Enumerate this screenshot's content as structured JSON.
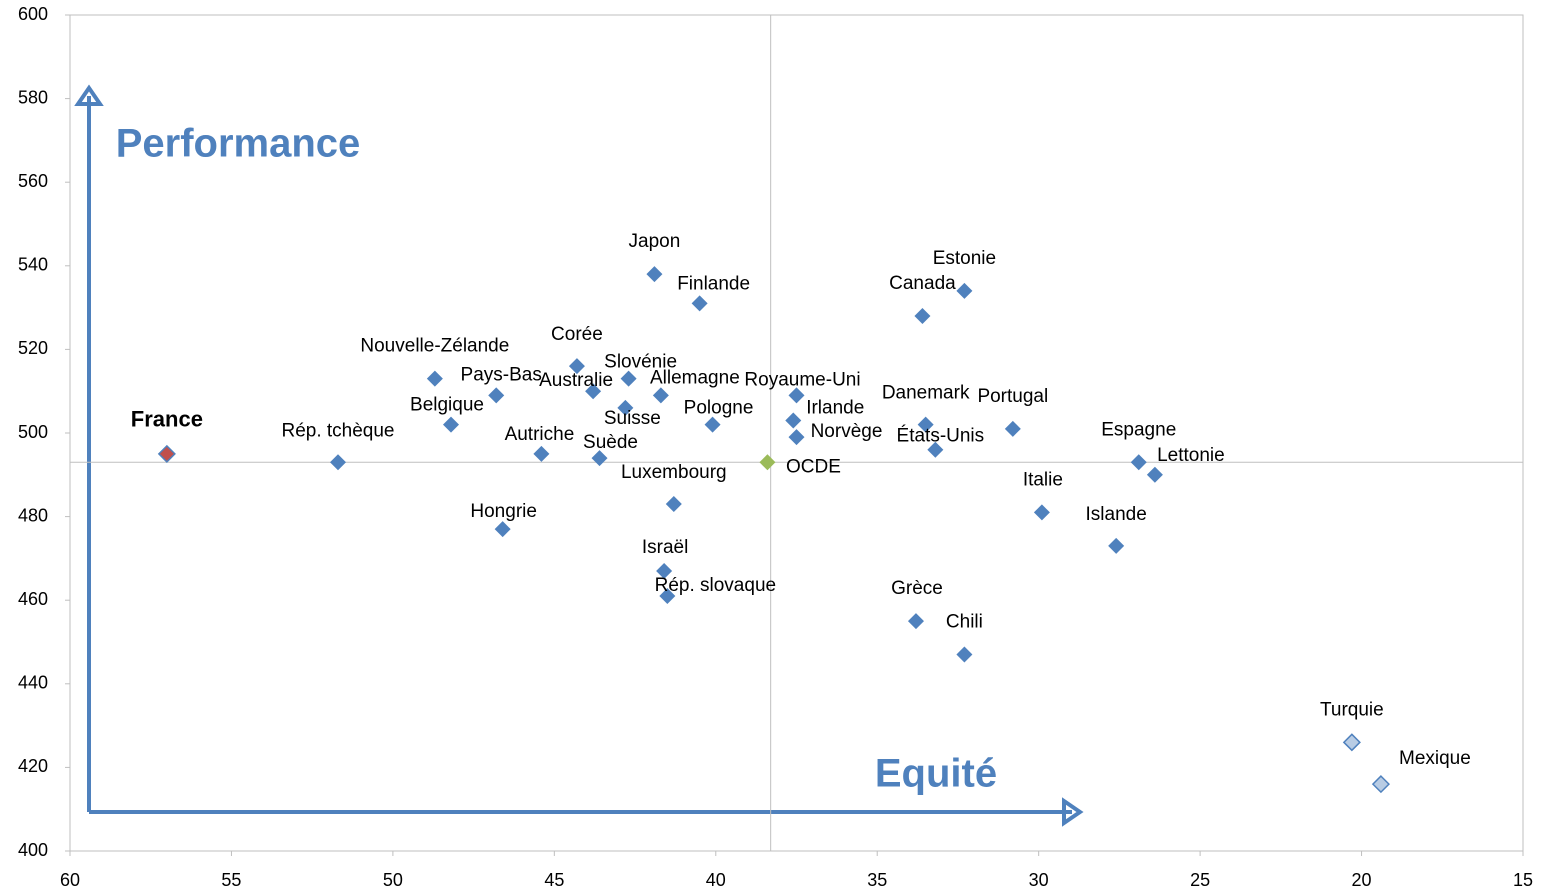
{
  "chart_data": {
    "type": "scatter",
    "annotations": [
      "Performance",
      "Equité"
    ],
    "labels": [
      "France",
      "Rép. tchèque",
      "Nouvelle-Zélande",
      "Pays-Bas",
      "Belgique",
      "Hongrie",
      "Autriche",
      "Corée",
      "Australie",
      "Slovénie",
      "Suisse",
      "Suède",
      "Japon",
      "Finlande",
      "Allemagne",
      "Pologne",
      "Luxembourg",
      "Israël",
      "Rép. slovaque",
      "OCDE",
      "Royaume-Uni",
      "Irlande",
      "Norvège",
      "Canada",
      "Estonie",
      "Danemark",
      "États-Unis",
      "Portugal",
      "Grèce",
      "Chili",
      "Italie",
      "Islande",
      "Espagne",
      "Lettonie",
      "Turquie",
      "Mexique"
    ],
    "x": [
      57.0,
      51.7,
      48.7,
      46.8,
      48.2,
      46.6,
      45.4,
      44.3,
      43.8,
      42.7,
      42.8,
      43.6,
      41.9,
      40.5,
      41.7,
      40.1,
      41.3,
      41.6,
      41.5,
      38.4,
      37.5,
      37.6,
      37.5,
      33.6,
      32.3,
      33.5,
      33.2,
      30.8,
      33.8,
      32.3,
      29.9,
      27.6,
      26.9,
      26.4,
      20.3,
      19.4
    ],
    "values": [
      495,
      493,
      513,
      509,
      502,
      477,
      495,
      516,
      510,
      513,
      506,
      494,
      538,
      531,
      509,
      502,
      483,
      467,
      461,
      493,
      509,
      503,
      499,
      528,
      534,
      502,
      496,
      501,
      455,
      447,
      481,
      473,
      493,
      490,
      426,
      416
    ],
    "colors": [
      "#c0504d",
      "#4f81bd",
      "#4f81bd",
      "#4f81bd",
      "#4f81bd",
      "#4f81bd",
      "#4f81bd",
      "#4f81bd",
      "#4f81bd",
      "#4f81bd",
      "#4f81bd",
      "#4f81bd",
      "#4f81bd",
      "#4f81bd",
      "#4f81bd",
      "#4f81bd",
      "#4f81bd",
      "#4f81bd",
      "#4f81bd",
      "#9bbb59",
      "#4f81bd",
      "#4f81bd",
      "#4f81bd",
      "#4f81bd",
      "#4f81bd",
      "#4f81bd",
      "#4f81bd",
      "#4f81bd",
      "#4f81bd",
      "#4f81bd",
      "#4f81bd",
      "#4f81bd",
      "#4f81bd",
      "#4f81bd",
      "#b8cce4",
      "#b8cce4"
    ],
    "reference_lines": {
      "x": 38.3,
      "y": 493
    },
    "xlim": [
      60,
      15
    ],
    "xticks": [
      60,
      55,
      50,
      45,
      40,
      35,
      30,
      25,
      20,
      15
    ],
    "ylim": [
      400,
      600
    ],
    "yticks": [
      400,
      420,
      440,
      460,
      480,
      500,
      520,
      540,
      560,
      580,
      600
    ]
  }
}
